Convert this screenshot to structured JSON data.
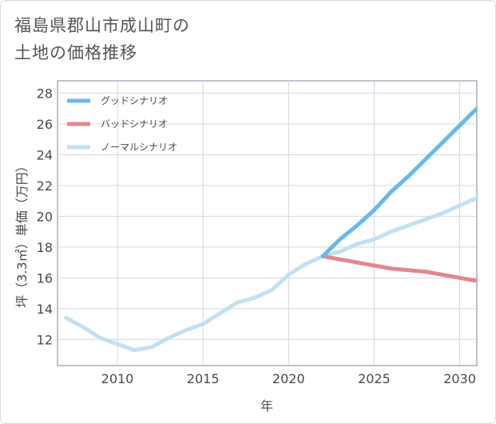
{
  "chart_data": {
    "type": "line",
    "title_lines": [
      "福島県郡山市成山町の",
      "土地の価格推移"
    ],
    "xlabel": "年",
    "ylabel": "坪（3.3㎡）単価（万円）",
    "xlim": [
      2006.5,
      2031
    ],
    "ylim": [
      10.3,
      28.8
    ],
    "x_ticks": [
      2010,
      2015,
      2020,
      2025,
      2030
    ],
    "y_ticks": [
      12,
      14,
      16,
      18,
      20,
      22,
      24,
      26,
      28
    ],
    "grid": true,
    "legend_position": "top-left",
    "series": [
      {
        "name": "グッドシナリオ",
        "color": "#6bb7ea",
        "x": [
          2022,
          2023,
          2024,
          2025,
          2026,
          2027,
          2028,
          2029,
          2030,
          2031
        ],
        "values": [
          17.4,
          18.5,
          19.4,
          20.4,
          21.6,
          22.6,
          23.7,
          24.8,
          25.9,
          27.0
        ]
      },
      {
        "name": "バッドシナリオ",
        "color": "#e08890",
        "x": [
          2022,
          2023,
          2024,
          2025,
          2026,
          2027,
          2028,
          2029,
          2030,
          2031
        ],
        "values": [
          17.4,
          17.2,
          17.0,
          16.8,
          16.6,
          16.5,
          16.4,
          16.2,
          16.0,
          15.8
        ]
      },
      {
        "name": "ノーマルシナリオ",
        "color": "#c4e0f0",
        "x": [
          2007,
          2008,
          2009,
          2010,
          2011,
          2012,
          2013,
          2014,
          2015,
          2016,
          2017,
          2018,
          2019,
          2020,
          2021,
          2022,
          2023,
          2024,
          2025,
          2026,
          2027,
          2028,
          2029,
          2030,
          2031
        ],
        "values": [
          13.4,
          12.8,
          12.1,
          11.7,
          11.3,
          11.5,
          12.1,
          12.6,
          13.0,
          13.7,
          14.4,
          14.7,
          15.2,
          16.2,
          16.9,
          17.4,
          17.7,
          18.2,
          18.5,
          19.0,
          19.4,
          19.8,
          20.2,
          20.7,
          21.2
        ]
      }
    ]
  }
}
